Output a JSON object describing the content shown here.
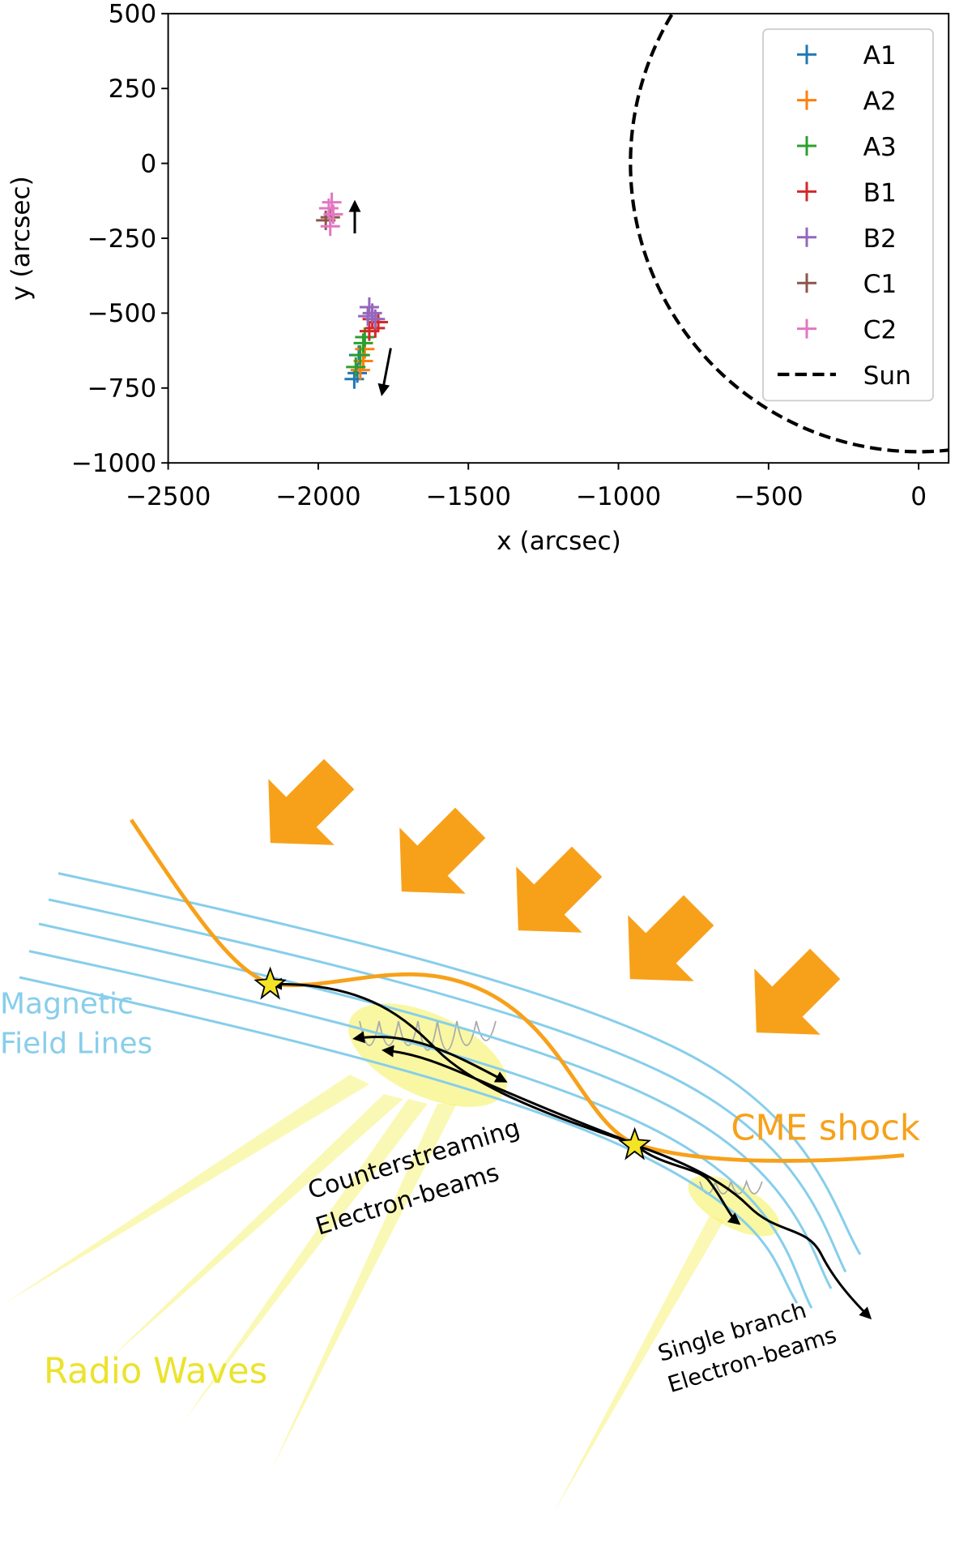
{
  "chart_data": {
    "type": "scatter",
    "xlabel": "x (arcsec)",
    "ylabel": "y (arcsec)",
    "xlim": [
      -2500,
      100
    ],
    "ylim": [
      -1000,
      500
    ],
    "xticks": [
      {
        "value": -2500,
        "label": "−2500"
      },
      {
        "value": -2000,
        "label": "−2000"
      },
      {
        "value": -1500,
        "label": "−1500"
      },
      {
        "value": -1000,
        "label": "−1000"
      },
      {
        "value": -500,
        "label": "−500"
      },
      0
    ],
    "yticks": [
      500,
      250,
      0,
      {
        "value": -250,
        "label": "−250"
      },
      {
        "value": -500,
        "label": "−500"
      },
      {
        "value": -750,
        "label": "−750"
      },
      {
        "value": -1000,
        "label": "−1000"
      }
    ],
    "legend": "upper right",
    "series": [
      {
        "name": "A1",
        "color": "#1f77b4",
        "x": [
          -1880,
          -1870,
          -1865
        ],
        "y": [
          -720,
          -700,
          -640
        ]
      },
      {
        "name": "A2",
        "color": "#ff7f0e",
        "x": [
          -1860,
          -1850,
          -1845
        ],
        "y": [
          -690,
          -660,
          -620
        ]
      },
      {
        "name": "A3",
        "color": "#2ca02c",
        "x": [
          -1875,
          -1860,
          -1850,
          -1845
        ],
        "y": [
          -680,
          -640,
          -600,
          -580
        ]
      },
      {
        "name": "B1",
        "color": "#d62728",
        "x": [
          -1830,
          -1810,
          -1800,
          -1820
        ],
        "y": [
          -560,
          -550,
          -530,
          -520
        ]
      },
      {
        "name": "B2",
        "color": "#9467bd",
        "x": [
          -1830,
          -1820,
          -1810,
          -1835
        ],
        "y": [
          -480,
          -500,
          -520,
          -510
        ]
      },
      {
        "name": "C1",
        "color": "#8c564b",
        "x": [
          -1975,
          -1960
        ],
        "y": [
          -190,
          -180
        ]
      },
      {
        "name": "C2",
        "color": "#e377c2",
        "x": [
          -1965,
          -1950,
          -1960,
          -1955
        ],
        "y": [
          -150,
          -170,
          -210,
          -130
        ]
      }
    ],
    "circle": {
      "name": "Sun",
      "radius": 960,
      "color": "#000000",
      "style": "dashed"
    }
  },
  "diagram": {
    "labels": {
      "magnetic": "Magnetic",
      "field_lines": "Field Lines",
      "shock": "CME shock",
      "counter1": "Counterstreaming",
      "counter2": "Electron-beams",
      "single1": "Single branch",
      "single2": "Electron-beams",
      "radio": "Radio Waves"
    }
  }
}
